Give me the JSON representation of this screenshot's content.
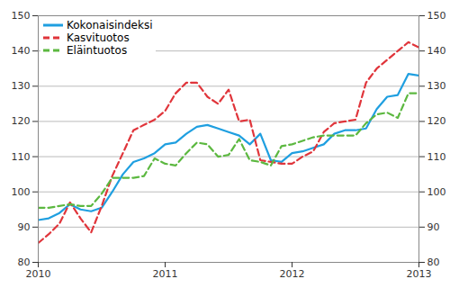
{
  "chart_data": {
    "type": "line",
    "x": [
      2010,
      2010.083,
      2010.167,
      2010.25,
      2010.333,
      2010.417,
      2010.5,
      2010.583,
      2010.667,
      2010.75,
      2010.833,
      2010.917,
      2011,
      2011.083,
      2011.167,
      2011.25,
      2011.333,
      2011.417,
      2011.5,
      2011.583,
      2011.667,
      2011.75,
      2011.833,
      2011.917,
      2012,
      2012.083,
      2012.167,
      2012.25,
      2012.333,
      2012.417,
      2012.5,
      2012.583,
      2012.667,
      2012.75,
      2012.833,
      2012.917,
      2013
    ],
    "series": [
      {
        "name": "Kokonaisindeksi",
        "color": "#1f9fe0",
        "line_style": "solid",
        "values": [
          92,
          92.5,
          94,
          96.5,
          95,
          94.5,
          95.5,
          100,
          105,
          108.5,
          109.5,
          111,
          113.5,
          114,
          116.5,
          118.5,
          119,
          118,
          117,
          116,
          113.5,
          116.5,
          109,
          108.5,
          111,
          111.5,
          112.5,
          113.5,
          116.5,
          117.5,
          117.5,
          118,
          123.5,
          127,
          127.5,
          133.5,
          133
        ]
      },
      {
        "name": "Kasvituotos",
        "color": "#e0353b",
        "line_style": "dashed",
        "values": [
          85.5,
          88,
          91,
          97,
          92.5,
          88.5,
          96,
          104.5,
          111,
          117.5,
          119,
          120.5,
          123,
          128,
          131,
          131,
          127,
          125,
          129,
          120,
          120.5,
          109,
          108.5,
          108,
          108,
          110,
          111.5,
          117,
          119.5,
          120,
          120.5,
          131,
          135,
          137.5,
          140,
          142.5,
          141
        ]
      },
      {
        "name": "Eläintuotos",
        "color": "#5cb840",
        "line_style": "dashed",
        "values": [
          95.5,
          95.5,
          96,
          96.5,
          96,
          96,
          99.5,
          104,
          104,
          104,
          104.5,
          109.5,
          108,
          107.5,
          111,
          114,
          113.5,
          110,
          110.5,
          115,
          109,
          108.5,
          107.5,
          113,
          113.5,
          114.5,
          115.5,
          116,
          116,
          116,
          116,
          119.5,
          122,
          122.5,
          121,
          128,
          128
        ]
      }
    ],
    "xlim": [
      2010,
      2013
    ],
    "xticks": [
      2010,
      2011,
      2012,
      2013
    ],
    "ylim": [
      80,
      150
    ],
    "yticks": [
      80,
      90,
      100,
      110,
      120,
      130,
      140,
      150
    ],
    "grid": true,
    "legend": "top-left"
  }
}
